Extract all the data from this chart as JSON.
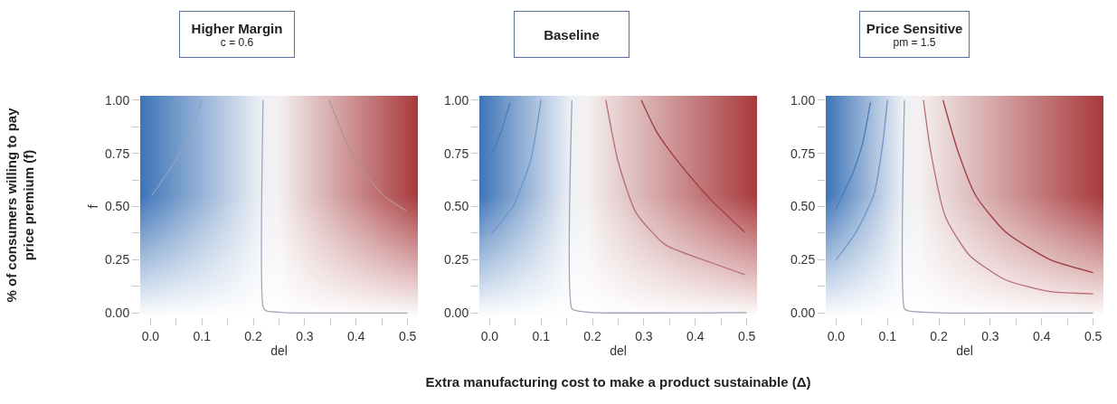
{
  "chart_data": [
    {
      "type": "line",
      "title": "Higher Margin",
      "subtitle": "c = 0.6",
      "xlabel": "del",
      "ylabel": "f",
      "annotations": [
        "% of consumers willing to pay price premium (f)"
      ],
      "xlim": [
        -0.02,
        0.52
      ],
      "ylim": [
        -0.02,
        1.02
      ],
      "xticks": [
        {
          "value": 0,
          "label": "0.0"
        },
        {
          "value": 0.05,
          "label": null
        },
        {
          "value": 0.1,
          "label": "0.1"
        },
        {
          "value": 0.15,
          "label": null
        },
        {
          "value": 0.2,
          "label": "0.2"
        },
        {
          "value": 0.25,
          "label": null
        },
        {
          "value": 0.3,
          "label": "0.3"
        },
        {
          "value": 0.35,
          "label": null
        },
        {
          "value": 0.4,
          "label": "0.4"
        },
        {
          "value": 0.45,
          "label": null
        },
        {
          "value": 0.5,
          "label": "0.5"
        }
      ],
      "yticks": [
        {
          "value": 0,
          "label": "0.00"
        },
        {
          "value": 0.125,
          "label": null
        },
        {
          "value": 0.25,
          "label": "0.25"
        },
        {
          "value": 0.375,
          "label": null
        },
        {
          "value": 0.5,
          "label": "0.50"
        },
        {
          "value": 0.625,
          "label": null
        },
        {
          "value": 0.75,
          "label": "0.75"
        },
        {
          "value": 0.875,
          "label": null
        },
        {
          "value": 1,
          "label": "1.00"
        }
      ],
      "series": [
        {
          "color": "#8aa4c8",
          "x": [
            0.002,
            0.042,
            0.078,
            0.1
          ],
          "values": [
            0.55,
            0.69,
            0.845,
            1.0
          ]
        },
        {
          "color": "#a0a8b8",
          "x": [
            0.219,
            0.219,
            0.225,
            0.26,
            0.5
          ],
          "values": [
            1.0,
            0.03,
            0.01,
            0.002,
            0.0
          ]
        },
        {
          "color": "#b89090",
          "x": [
            0.348,
            0.395,
            0.454,
            0.498
          ],
          "values": [
            1.0,
            0.73,
            0.55,
            0.48
          ]
        }
      ]
    },
    {
      "type": "line",
      "title": "Baseline",
      "xlabel": "del",
      "annotations": [
        "Extra manufacturing cost to make a product sustainable (Δ)"
      ],
      "xlim": [
        -0.02,
        0.52
      ],
      "ylim": [
        -0.02,
        1.02
      ],
      "xticks": [
        {
          "value": 0,
          "label": "0.0"
        },
        {
          "value": 0.05,
          "label": null
        },
        {
          "value": 0.1,
          "label": "0.1"
        },
        {
          "value": 0.15,
          "label": null
        },
        {
          "value": 0.2,
          "label": "0.2"
        },
        {
          "value": 0.25,
          "label": null
        },
        {
          "value": 0.3,
          "label": "0.3"
        },
        {
          "value": 0.35,
          "label": null
        },
        {
          "value": 0.4,
          "label": "0.4"
        },
        {
          "value": 0.45,
          "label": null
        },
        {
          "value": 0.5,
          "label": "0.5"
        }
      ],
      "yticks": [
        {
          "value": 0,
          "label": "0.00"
        },
        {
          "value": 0.125,
          "label": null
        },
        {
          "value": 0.25,
          "label": "0.25"
        },
        {
          "value": 0.375,
          "label": null
        },
        {
          "value": 0.5,
          "label": "0.50"
        },
        {
          "value": 0.625,
          "label": null
        },
        {
          "value": 0.75,
          "label": "0.75"
        },
        {
          "value": 0.875,
          "label": null
        },
        {
          "value": 1,
          "label": "1.00"
        }
      ],
      "series": [
        {
          "color": "#4a7ab8",
          "x": [
            0.003,
            0.022,
            0.04
          ],
          "values": [
            0.74,
            0.85,
            0.99
          ]
        },
        {
          "color": "#6f94c6",
          "x": [
            0.003,
            0.045,
            0.079,
            0.1
          ],
          "values": [
            0.37,
            0.5,
            0.71,
            1.0
          ]
        },
        {
          "color": "#9aa3b5",
          "x": [
            0.16,
            0.16,
            0.17,
            0.2,
            0.5
          ],
          "values": [
            1.0,
            0.02,
            0.01,
            0.002,
            0.002
          ]
        },
        {
          "color": "#b56d72",
          "x": [
            0.226,
            0.25,
            0.285,
            0.342,
            0.427,
            0.496
          ],
          "values": [
            1.0,
            0.71,
            0.47,
            0.32,
            0.24,
            0.18
          ]
        },
        {
          "color": "#9e3a40",
          "x": [
            0.295,
            0.325,
            0.37,
            0.427,
            0.496
          ],
          "values": [
            1.0,
            0.85,
            0.7,
            0.54,
            0.38
          ]
        }
      ]
    },
    {
      "type": "line",
      "title": "Price Sensitive",
      "subtitle": "pm = 1.5",
      "xlabel": "del",
      "xlim": [
        -0.02,
        0.52
      ],
      "ylim": [
        -0.02,
        1.02
      ],
      "xticks": [
        {
          "value": 0,
          "label": "0.0"
        },
        {
          "value": 0.05,
          "label": null
        },
        {
          "value": 0.1,
          "label": "0.1"
        },
        {
          "value": 0.15,
          "label": null
        },
        {
          "value": 0.2,
          "label": "0.2"
        },
        {
          "value": 0.25,
          "label": null
        },
        {
          "value": 0.3,
          "label": "0.3"
        },
        {
          "value": 0.35,
          "label": null
        },
        {
          "value": 0.4,
          "label": "0.4"
        },
        {
          "value": 0.45,
          "label": null
        },
        {
          "value": 0.5,
          "label": "0.5"
        }
      ],
      "yticks": [
        {
          "value": 0,
          "label": "0.00"
        },
        {
          "value": 0.125,
          "label": null
        },
        {
          "value": 0.25,
          "label": "0.25"
        },
        {
          "value": 0.375,
          "label": null
        },
        {
          "value": 0.5,
          "label": "0.50"
        },
        {
          "value": 0.625,
          "label": null
        },
        {
          "value": 0.75,
          "label": "0.75"
        },
        {
          "value": 0.875,
          "label": null
        },
        {
          "value": 1,
          "label": "1.00"
        }
      ],
      "series": [
        {
          "color": "#4a7ab8",
          "x": [
            0,
            0.033,
            0.051,
            0.067
          ],
          "values": [
            0.49,
            0.66,
            0.79,
            0.99
          ]
        },
        {
          "color": "#6f94c6",
          "x": [
            0,
            0.039,
            0.074,
            0.091,
            0.1
          ],
          "values": [
            0.25,
            0.38,
            0.56,
            0.8,
            1.0
          ]
        },
        {
          "color": "#9aa3b5",
          "x": [
            0.133,
            0.133,
            0.14,
            0.2,
            0.5
          ],
          "values": [
            1.0,
            0.02,
            0.01,
            0.001,
            0.0
          ]
        },
        {
          "color": "#b56d72",
          "x": [
            0.17,
            0.184,
            0.213,
            0.26,
            0.33,
            0.417,
            0.5
          ],
          "values": [
            1.0,
            0.76,
            0.45,
            0.27,
            0.155,
            0.1,
            0.09
          ]
        },
        {
          "color": "#9e3a40",
          "x": [
            0.208,
            0.237,
            0.272,
            0.33,
            0.417,
            0.5
          ],
          "values": [
            1.0,
            0.76,
            0.55,
            0.38,
            0.25,
            0.19
          ]
        }
      ]
    }
  ]
}
